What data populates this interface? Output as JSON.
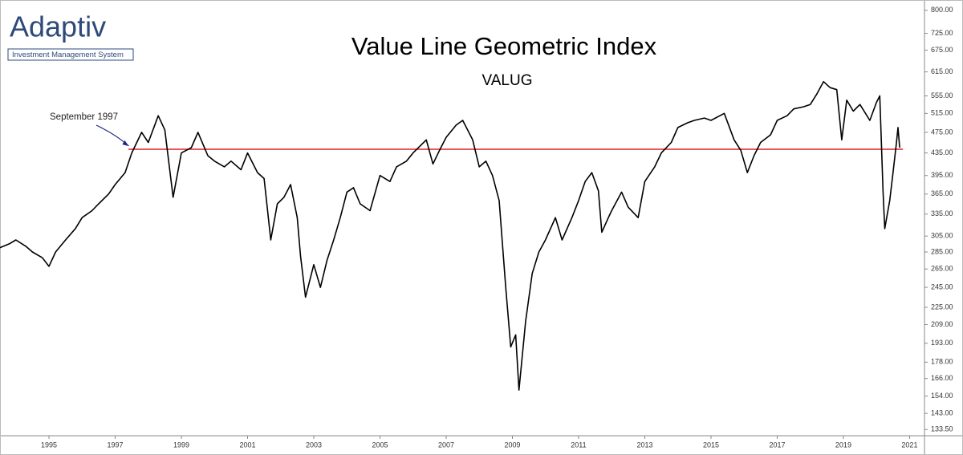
{
  "logo": {
    "name": "Adaptiv",
    "tagline": "Investment Management System"
  },
  "chart_data": {
    "type": "line",
    "title": "Value Line Geometric Index",
    "subtitle": "VALUG",
    "log_scale": true,
    "color": "#000000",
    "x": [
      1993.5,
      1993.8,
      1994.0,
      1994.3,
      1994.5,
      1994.8,
      1995.0,
      1995.2,
      1995.5,
      1995.8,
      1996.0,
      1996.3,
      1996.5,
      1996.8,
      1997.0,
      1997.3,
      1997.5,
      1997.8,
      1998.0,
      1998.3,
      1998.5,
      1998.75,
      1999.0,
      1999.3,
      1999.5,
      1999.8,
      2000.0,
      2000.3,
      2000.5,
      2000.8,
      2001.0,
      2001.3,
      2001.5,
      2001.7,
      2001.9,
      2002.1,
      2002.3,
      2002.5,
      2002.6,
      2002.75,
      2003.0,
      2003.2,
      2003.4,
      2003.6,
      2003.8,
      2004.0,
      2004.2,
      2004.4,
      2004.7,
      2005.0,
      2005.3,
      2005.5,
      2005.8,
      2006.0,
      2006.4,
      2006.6,
      2006.8,
      2007.0,
      2007.3,
      2007.5,
      2007.8,
      2008.0,
      2008.2,
      2008.4,
      2008.6,
      2008.8,
      2008.95,
      2009.1,
      2009.2,
      2009.4,
      2009.6,
      2009.8,
      2010.0,
      2010.3,
      2010.5,
      2010.8,
      2011.0,
      2011.2,
      2011.4,
      2011.6,
      2011.7,
      2011.9,
      2012.0,
      2012.3,
      2012.5,
      2012.8,
      2013.0,
      2013.3,
      2013.5,
      2013.8,
      2014.0,
      2014.3,
      2014.5,
      2014.8,
      2015.0,
      2015.4,
      2015.7,
      2015.9,
      2016.1,
      2016.3,
      2016.5,
      2016.8,
      2017.0,
      2017.3,
      2017.5,
      2017.8,
      2018.0,
      2018.2,
      2018.4,
      2018.6,
      2018.8,
      2018.95,
      2019.1,
      2019.3,
      2019.5,
      2019.8,
      2020.0,
      2020.1,
      2020.2,
      2020.25,
      2020.4,
      2020.5,
      2020.6,
      2020.65,
      2020.7
    ],
    "values": [
      290,
      295,
      300,
      292,
      285,
      278,
      268,
      285,
      300,
      315,
      330,
      340,
      350,
      365,
      380,
      400,
      435,
      475,
      455,
      510,
      480,
      360,
      435,
      445,
      475,
      430,
      420,
      410,
      420,
      405,
      435,
      400,
      390,
      300,
      350,
      360,
      380,
      330,
      280,
      235,
      270,
      245,
      275,
      300,
      330,
      368,
      375,
      350,
      340,
      395,
      385,
      410,
      420,
      435,
      460,
      415,
      440,
      465,
      490,
      500,
      460,
      410,
      420,
      395,
      355,
      245,
      190,
      200,
      158,
      212,
      260,
      285,
      300,
      330,
      300,
      330,
      355,
      385,
      400,
      370,
      310,
      330,
      340,
      368,
      345,
      330,
      385,
      410,
      435,
      455,
      485,
      495,
      500,
      505,
      500,
      515,
      460,
      440,
      400,
      430,
      455,
      470,
      500,
      510,
      525,
      530,
      535,
      560,
      590,
      575,
      570,
      460,
      545,
      520,
      535,
      500,
      540,
      555,
      368,
      315,
      355,
      400,
      452,
      485,
      445
    ],
    "reference_line": {
      "value": 442,
      "x": [
        1997.4,
        2020.8
      ],
      "color": "#e02020"
    },
    "annotation": {
      "text": "September 1997",
      "x": 1997.7,
      "y": 442
    },
    "xlim": [
      1993.52,
      2021.45
    ],
    "ylim": [
      130,
      836
    ],
    "xticks": [
      1995,
      1997,
      1999,
      2001,
      2003,
      2005,
      2007,
      2009,
      2011,
      2013,
      2015,
      2017,
      2019,
      2021
    ],
    "yticks": [
      {
        "value": 800,
        "label": "800.00"
      },
      {
        "value": 725,
        "label": "725.00"
      },
      {
        "value": 675,
        "label": "675.00"
      },
      {
        "value": 615,
        "label": "615.00"
      },
      {
        "value": 555,
        "label": "555.00"
      },
      {
        "value": 515,
        "label": "515.00"
      },
      {
        "value": 475,
        "label": "475.00"
      },
      {
        "value": 435,
        "label": "435.00"
      },
      {
        "value": 395,
        "label": "395.00"
      },
      {
        "value": 365,
        "label": "365.00"
      },
      {
        "value": 335,
        "label": "335.00"
      },
      {
        "value": 305,
        "label": "305.00"
      },
      {
        "value": 285,
        "label": "285.00"
      },
      {
        "value": 265,
        "label": "265.00"
      },
      {
        "value": 245,
        "label": "245.00"
      },
      {
        "value": 225,
        "label": "225.00"
      },
      {
        "value": 209,
        "label": "209.00"
      },
      {
        "value": 193,
        "label": "193.00"
      },
      {
        "value": 178,
        "label": "178.00"
      },
      {
        "value": 166,
        "label": "166.00"
      },
      {
        "value": 154,
        "label": "154.00"
      },
      {
        "value": 143,
        "label": "143.00"
      },
      {
        "value": 133.5,
        "label": "133.50"
      }
    ]
  }
}
